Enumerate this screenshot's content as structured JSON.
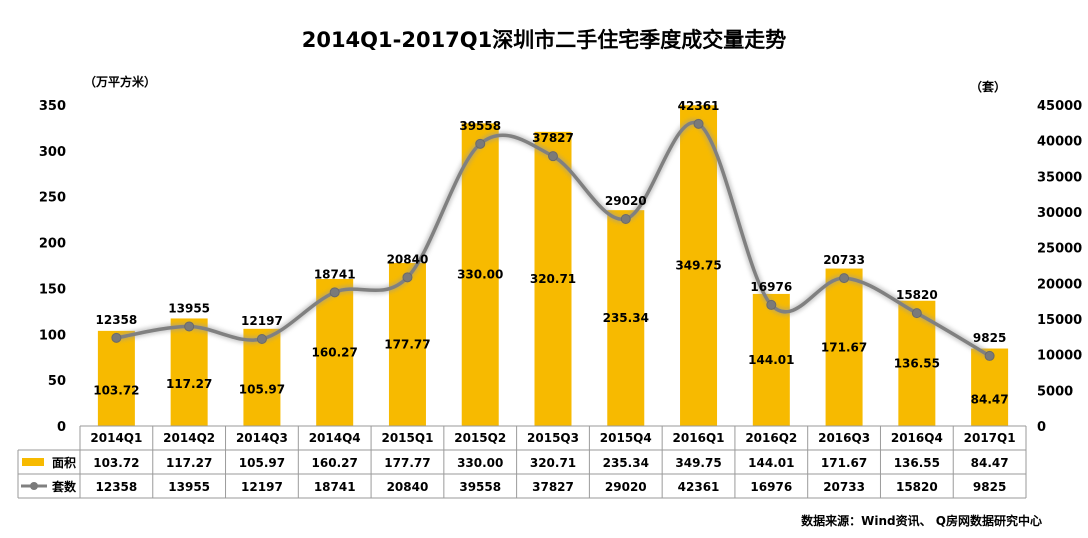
{
  "chart_data": {
    "type": "bar",
    "title": "2014Q1-2017Q1深圳市二手住宅季度成交量走势",
    "categories": [
      "2014Q1",
      "2014Q2",
      "2014Q3",
      "2014Q4",
      "2015Q1",
      "2015Q2",
      "2015Q3",
      "2015Q4",
      "2016Q1",
      "2016Q2",
      "2016Q3",
      "2016Q4",
      "2017Q1"
    ],
    "left_axis": {
      "unit": "（万平方米）",
      "range": [
        0,
        350
      ],
      "ticks": [
        0,
        50,
        100,
        150,
        200,
        250,
        300,
        350
      ]
    },
    "right_axis": {
      "unit": "（套）",
      "range": [
        0,
        45000
      ],
      "ticks": [
        0,
        5000,
        10000,
        15000,
        20000,
        25000,
        30000,
        35000,
        40000,
        45000
      ]
    },
    "series": [
      {
        "name": "面积",
        "type": "bar",
        "axis": "left",
        "color": "#F7BA00",
        "values": [
          103.72,
          117.27,
          105.97,
          160.27,
          177.77,
          330.0,
          320.71,
          235.34,
          349.75,
          144.01,
          171.67,
          136.55,
          84.47
        ],
        "labels": [
          "103.72",
          "117.27",
          "105.97",
          "160.27",
          "177.77",
          "330.00",
          "320.71",
          "235.34",
          "349.75",
          "144.01",
          "171.67",
          "136.55",
          "84.47"
        ]
      },
      {
        "name": "套数",
        "type": "line",
        "axis": "right",
        "color": "#808080",
        "values": [
          12358,
          13955,
          12197,
          18741,
          20840,
          39558,
          37827,
          29020,
          42361,
          16976,
          20733,
          15820,
          9825
        ]
      }
    ],
    "data_table": true,
    "source": "数据来源：Wind资讯、 Q房网数据研究中心"
  }
}
